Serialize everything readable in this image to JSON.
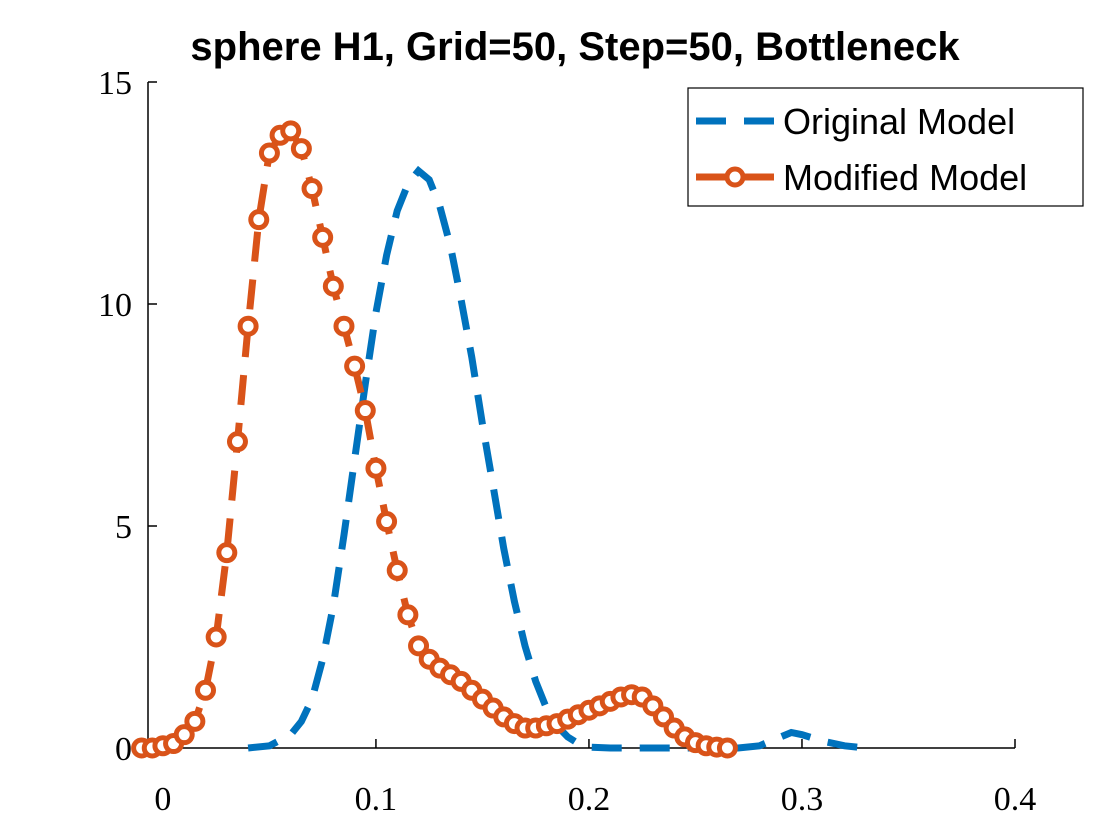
{
  "chart_data": {
    "type": "line",
    "title": "sphere H1, Grid=50, Step=50, Bottleneck",
    "xlim": [
      -0.007,
      0.4
    ],
    "xticks": [
      0,
      0.1,
      0.2,
      0.3,
      0.4
    ],
    "ylim": [
      0,
      15
    ],
    "yticks": [
      0,
      5,
      10,
      15
    ],
    "legend": "upper-right",
    "series": [
      {
        "name": "Original Model",
        "color": "#0072bd",
        "style": "dashed",
        "x": [
          0.04,
          0.05,
          0.06,
          0.065,
          0.07,
          0.075,
          0.08,
          0.085,
          0.09,
          0.095,
          0.1,
          0.105,
          0.11,
          0.115,
          0.12,
          0.125,
          0.13,
          0.135,
          0.14,
          0.145,
          0.15,
          0.155,
          0.16,
          0.165,
          0.17,
          0.175,
          0.18,
          0.185,
          0.19,
          0.195,
          0.2,
          0.21,
          0.22,
          0.25,
          0.27,
          0.28,
          0.29,
          0.295,
          0.3,
          0.31,
          0.32,
          0.33
        ],
        "values": [
          0,
          0.05,
          0.3,
          0.6,
          1.1,
          2.0,
          3.2,
          4.8,
          6.5,
          8.2,
          9.8,
          11.1,
          12.1,
          12.7,
          13.0,
          12.8,
          12.2,
          11.3,
          10.1,
          8.8,
          7.3,
          5.9,
          4.5,
          3.3,
          2.3,
          1.5,
          0.9,
          0.5,
          0.25,
          0.1,
          0.02,
          0,
          0,
          0,
          0,
          0.05,
          0.25,
          0.35,
          0.3,
          0.15,
          0.05,
          0
        ]
      },
      {
        "name": "Modified Model",
        "color": "#d95319",
        "style": "dashed-circle",
        "x": [
          -0.01,
          -0.005,
          0,
          0.005,
          0.01,
          0.015,
          0.02,
          0.025,
          0.03,
          0.035,
          0.04,
          0.045,
          0.05,
          0.055,
          0.06,
          0.065,
          0.07,
          0.075,
          0.08,
          0.085,
          0.09,
          0.095,
          0.1,
          0.105,
          0.11,
          0.115,
          0.12,
          0.125,
          0.13,
          0.135,
          0.14,
          0.145,
          0.15,
          0.155,
          0.16,
          0.165,
          0.17,
          0.175,
          0.18,
          0.185,
          0.19,
          0.195,
          0.2,
          0.205,
          0.21,
          0.215,
          0.22,
          0.225,
          0.23,
          0.235,
          0.24,
          0.245,
          0.25,
          0.255,
          0.26,
          0.265
        ],
        "values": [
          0,
          0,
          0.05,
          0.1,
          0.3,
          0.6,
          1.3,
          2.5,
          4.4,
          6.9,
          9.5,
          11.9,
          13.4,
          13.8,
          13.9,
          13.5,
          12.6,
          11.5,
          10.4,
          9.5,
          8.6,
          7.6,
          6.3,
          5.1,
          4.0,
          3.0,
          2.3,
          2.0,
          1.8,
          1.65,
          1.5,
          1.3,
          1.1,
          0.9,
          0.7,
          0.55,
          0.45,
          0.45,
          0.5,
          0.55,
          0.65,
          0.75,
          0.85,
          0.95,
          1.05,
          1.15,
          1.2,
          1.15,
          0.95,
          0.7,
          0.45,
          0.25,
          0.12,
          0.05,
          0.02,
          0
        ]
      }
    ]
  }
}
